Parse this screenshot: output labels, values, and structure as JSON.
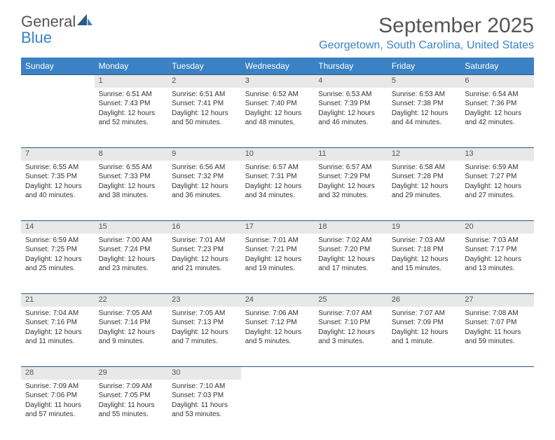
{
  "logo": {
    "general": "General",
    "blue": "Blue"
  },
  "title": "September 2025",
  "location": "Georgetown, South Carolina, United States",
  "colors": {
    "header_bg": "#3b82c4",
    "header_text": "#ffffff",
    "daynum_bg": "#e8e8e8",
    "border": "#2b5a87",
    "title_color": "#555555",
    "location_color": "#3b82c4"
  },
  "day_headers": [
    "Sunday",
    "Monday",
    "Tuesday",
    "Wednesday",
    "Thursday",
    "Friday",
    "Saturday"
  ],
  "weeks": [
    {
      "nums": [
        "",
        "1",
        "2",
        "3",
        "4",
        "5",
        "6"
      ],
      "cells": [
        {
          "empty": true
        },
        {
          "sunrise": "Sunrise: 6:51 AM",
          "sunset": "Sunset: 7:43 PM",
          "daylight": "Daylight: 12 hours and 52 minutes."
        },
        {
          "sunrise": "Sunrise: 6:51 AM",
          "sunset": "Sunset: 7:41 PM",
          "daylight": "Daylight: 12 hours and 50 minutes."
        },
        {
          "sunrise": "Sunrise: 6:52 AM",
          "sunset": "Sunset: 7:40 PM",
          "daylight": "Daylight: 12 hours and 48 minutes."
        },
        {
          "sunrise": "Sunrise: 6:53 AM",
          "sunset": "Sunset: 7:39 PM",
          "daylight": "Daylight: 12 hours and 46 minutes."
        },
        {
          "sunrise": "Sunrise: 6:53 AM",
          "sunset": "Sunset: 7:38 PM",
          "daylight": "Daylight: 12 hours and 44 minutes."
        },
        {
          "sunrise": "Sunrise: 6:54 AM",
          "sunset": "Sunset: 7:36 PM",
          "daylight": "Daylight: 12 hours and 42 minutes."
        }
      ]
    },
    {
      "nums": [
        "7",
        "8",
        "9",
        "10",
        "11",
        "12",
        "13"
      ],
      "cells": [
        {
          "sunrise": "Sunrise: 6:55 AM",
          "sunset": "Sunset: 7:35 PM",
          "daylight": "Daylight: 12 hours and 40 minutes."
        },
        {
          "sunrise": "Sunrise: 6:55 AM",
          "sunset": "Sunset: 7:33 PM",
          "daylight": "Daylight: 12 hours and 38 minutes."
        },
        {
          "sunrise": "Sunrise: 6:56 AM",
          "sunset": "Sunset: 7:32 PM",
          "daylight": "Daylight: 12 hours and 36 minutes."
        },
        {
          "sunrise": "Sunrise: 6:57 AM",
          "sunset": "Sunset: 7:31 PM",
          "daylight": "Daylight: 12 hours and 34 minutes."
        },
        {
          "sunrise": "Sunrise: 6:57 AM",
          "sunset": "Sunset: 7:29 PM",
          "daylight": "Daylight: 12 hours and 32 minutes."
        },
        {
          "sunrise": "Sunrise: 6:58 AM",
          "sunset": "Sunset: 7:28 PM",
          "daylight": "Daylight: 12 hours and 29 minutes."
        },
        {
          "sunrise": "Sunrise: 6:59 AM",
          "sunset": "Sunset: 7:27 PM",
          "daylight": "Daylight: 12 hours and 27 minutes."
        }
      ]
    },
    {
      "nums": [
        "14",
        "15",
        "16",
        "17",
        "18",
        "19",
        "20"
      ],
      "cells": [
        {
          "sunrise": "Sunrise: 6:59 AM",
          "sunset": "Sunset: 7:25 PM",
          "daylight": "Daylight: 12 hours and 25 minutes."
        },
        {
          "sunrise": "Sunrise: 7:00 AM",
          "sunset": "Sunset: 7:24 PM",
          "daylight": "Daylight: 12 hours and 23 minutes."
        },
        {
          "sunrise": "Sunrise: 7:01 AM",
          "sunset": "Sunset: 7:23 PM",
          "daylight": "Daylight: 12 hours and 21 minutes."
        },
        {
          "sunrise": "Sunrise: 7:01 AM",
          "sunset": "Sunset: 7:21 PM",
          "daylight": "Daylight: 12 hours and 19 minutes."
        },
        {
          "sunrise": "Sunrise: 7:02 AM",
          "sunset": "Sunset: 7:20 PM",
          "daylight": "Daylight: 12 hours and 17 minutes."
        },
        {
          "sunrise": "Sunrise: 7:03 AM",
          "sunset": "Sunset: 7:18 PM",
          "daylight": "Daylight: 12 hours and 15 minutes."
        },
        {
          "sunrise": "Sunrise: 7:03 AM",
          "sunset": "Sunset: 7:17 PM",
          "daylight": "Daylight: 12 hours and 13 minutes."
        }
      ]
    },
    {
      "nums": [
        "21",
        "22",
        "23",
        "24",
        "25",
        "26",
        "27"
      ],
      "cells": [
        {
          "sunrise": "Sunrise: 7:04 AM",
          "sunset": "Sunset: 7:16 PM",
          "daylight": "Daylight: 12 hours and 11 minutes."
        },
        {
          "sunrise": "Sunrise: 7:05 AM",
          "sunset": "Sunset: 7:14 PM",
          "daylight": "Daylight: 12 hours and 9 minutes."
        },
        {
          "sunrise": "Sunrise: 7:05 AM",
          "sunset": "Sunset: 7:13 PM",
          "daylight": "Daylight: 12 hours and 7 minutes."
        },
        {
          "sunrise": "Sunrise: 7:06 AM",
          "sunset": "Sunset: 7:12 PM",
          "daylight": "Daylight: 12 hours and 5 minutes."
        },
        {
          "sunrise": "Sunrise: 7:07 AM",
          "sunset": "Sunset: 7:10 PM",
          "daylight": "Daylight: 12 hours and 3 minutes."
        },
        {
          "sunrise": "Sunrise: 7:07 AM",
          "sunset": "Sunset: 7:09 PM",
          "daylight": "Daylight: 12 hours and 1 minute."
        },
        {
          "sunrise": "Sunrise: 7:08 AM",
          "sunset": "Sunset: 7:07 PM",
          "daylight": "Daylight: 11 hours and 59 minutes."
        }
      ]
    },
    {
      "nums": [
        "28",
        "29",
        "30",
        "",
        "",
        "",
        ""
      ],
      "cells": [
        {
          "sunrise": "Sunrise: 7:09 AM",
          "sunset": "Sunset: 7:06 PM",
          "daylight": "Daylight: 11 hours and 57 minutes."
        },
        {
          "sunrise": "Sunrise: 7:09 AM",
          "sunset": "Sunset: 7:05 PM",
          "daylight": "Daylight: 11 hours and 55 minutes."
        },
        {
          "sunrise": "Sunrise: 7:10 AM",
          "sunset": "Sunset: 7:03 PM",
          "daylight": "Daylight: 11 hours and 53 minutes."
        },
        {
          "empty": true
        },
        {
          "empty": true
        },
        {
          "empty": true
        },
        {
          "empty": true
        }
      ]
    }
  ]
}
